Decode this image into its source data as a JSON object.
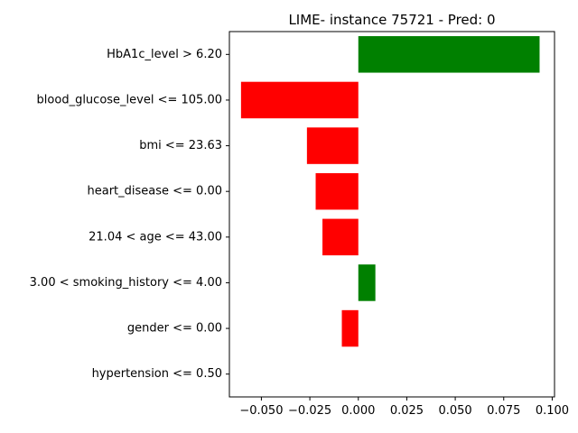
{
  "chart_data": {
    "type": "bar",
    "orientation": "horizontal",
    "title": "LIME- instance 75721 - Pred: 0",
    "xlabel": "",
    "ylabel": "",
    "xlim": [
      -0.0665,
      0.1012
    ],
    "xticks": [
      -0.05,
      -0.025,
      0.0,
      0.025,
      0.05,
      0.075,
      0.1
    ],
    "xtick_labels": [
      "−0.050",
      "−0.025",
      "0.000",
      "0.025",
      "0.050",
      "0.075",
      "0.100"
    ],
    "grid": false,
    "colors": {
      "positive": "#008000",
      "negative": "#ff0000"
    },
    "categories": [
      "HbA1c_level > 6.20",
      "blood_glucose_level <= 105.00",
      "bmi <= 23.63",
      "heart_disease <= 0.00",
      "21.04 < age <= 43.00",
      "3.00 < smoking_history <= 4.00",
      "gender <= 0.00",
      "hypertension <= 0.50"
    ],
    "values": [
      0.0935,
      -0.0605,
      -0.0265,
      -0.022,
      -0.0185,
      0.0088,
      -0.0085,
      0.0
    ]
  }
}
